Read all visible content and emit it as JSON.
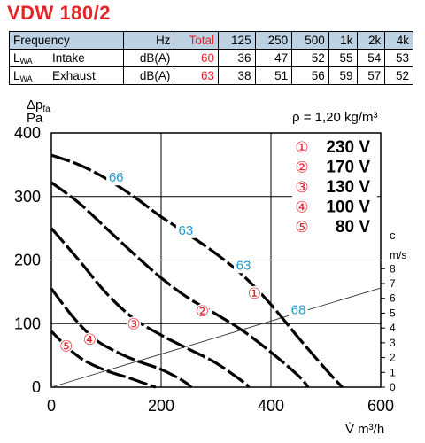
{
  "title": "VDW 180/2",
  "table": {
    "header": {
      "label": "Frequency",
      "unit": "Hz",
      "total": "Total",
      "bands": [
        "125",
        "250",
        "500",
        "1k",
        "2k",
        "4k"
      ]
    },
    "rows": [
      {
        "lw_main": "L",
        "lw_sub": "WA",
        "name": "Intake",
        "unit": "dB(A)",
        "total": "60",
        "values": [
          "36",
          "47",
          "52",
          "55",
          "54",
          "53"
        ]
      },
      {
        "lw_main": "L",
        "lw_sub": "WA",
        "name": "Exhaust",
        "unit": "dB(A)",
        "total": "63",
        "values": [
          "38",
          "51",
          "56",
          "59",
          "57",
          "52"
        ]
      }
    ]
  },
  "colors": {
    "title": "#e5242a",
    "header_bg": "#bcd2e3",
    "noise_label": "#1a9cd8",
    "marker": "#e5242a"
  },
  "chart_data": {
    "type": "line",
    "ylabel_main": "Δp",
    "ylabel_sub": "fa",
    "yunit": "Pa",
    "xlabel": "V̇ m³/h",
    "density": "ρ = 1,20 kg/m³",
    "xlim": [
      0,
      600
    ],
    "ylim": [
      0,
      400
    ],
    "xticks": [
      "0",
      "200",
      "400",
      "600"
    ],
    "yticks": [
      "0",
      "100",
      "200",
      "300",
      "400"
    ],
    "right_axis": {
      "label_top": "c",
      "label_unit": "m/s",
      "ticks": [
        "0",
        "1",
        "2",
        "3",
        "4",
        "5",
        "6",
        "7",
        "8"
      ]
    },
    "velocity_line": {
      "x": [
        0,
        600
      ],
      "c": [
        0,
        6.7
      ]
    },
    "grid": true,
    "legend": [
      {
        "num": "①",
        "label": "230 V"
      },
      {
        "num": "②",
        "label": "170 V"
      },
      {
        "num": "③",
        "label": "130 V"
      },
      {
        "num": "④",
        "label": "100 V"
      },
      {
        "num": "⑤",
        "label": "80 V"
      }
    ],
    "series": [
      {
        "marker": "①",
        "marker_at": [
          370,
          148
        ],
        "points": [
          [
            0,
            365
          ],
          [
            50,
            350
          ],
          [
            100,
            328
          ],
          [
            150,
            300
          ],
          [
            200,
            268
          ],
          [
            250,
            240
          ],
          [
            300,
            210
          ],
          [
            350,
            175
          ],
          [
            400,
            130
          ],
          [
            450,
            78
          ],
          [
            500,
            28
          ],
          [
            530,
            0
          ]
        ]
      },
      {
        "marker": "②",
        "marker_at": [
          275,
          120
        ],
        "points": [
          [
            0,
            322
          ],
          [
            50,
            290
          ],
          [
            100,
            250
          ],
          [
            150,
            210
          ],
          [
            200,
            172
          ],
          [
            250,
            140
          ],
          [
            300,
            115
          ],
          [
            350,
            88
          ],
          [
            400,
            55
          ],
          [
            450,
            18
          ],
          [
            468,
            0
          ]
        ]
      },
      {
        "marker": "③",
        "marker_at": [
          150,
          100
        ],
        "points": [
          [
            0,
            250
          ],
          [
            50,
            200
          ],
          [
            100,
            148
          ],
          [
            150,
            108
          ],
          [
            200,
            82
          ],
          [
            250,
            60
          ],
          [
            300,
            38
          ],
          [
            350,
            8
          ],
          [
            360,
            0
          ]
        ]
      },
      {
        "marker": "④",
        "marker_at": [
          70,
          75
        ],
        "points": [
          [
            0,
            155
          ],
          [
            40,
            110
          ],
          [
            80,
            75
          ],
          [
            120,
            55
          ],
          [
            160,
            40
          ],
          [
            200,
            28
          ],
          [
            240,
            10
          ],
          [
            255,
            0
          ]
        ]
      },
      {
        "marker": "⑤",
        "marker_at": [
          27,
          65
        ],
        "points": [
          [
            0,
            88
          ],
          [
            30,
            62
          ],
          [
            60,
            42
          ],
          [
            100,
            26
          ],
          [
            140,
            15
          ],
          [
            180,
            3
          ],
          [
            190,
            0
          ]
        ]
      }
    ],
    "noise_labels": [
      {
        "text": "66",
        "x": 118,
        "y": 323
      },
      {
        "text": "63",
        "x": 245,
        "y": 240
      },
      {
        "text": "63",
        "x": 350,
        "y": 185
      },
      {
        "text": "68",
        "x": 450,
        "y": 115
      }
    ]
  }
}
